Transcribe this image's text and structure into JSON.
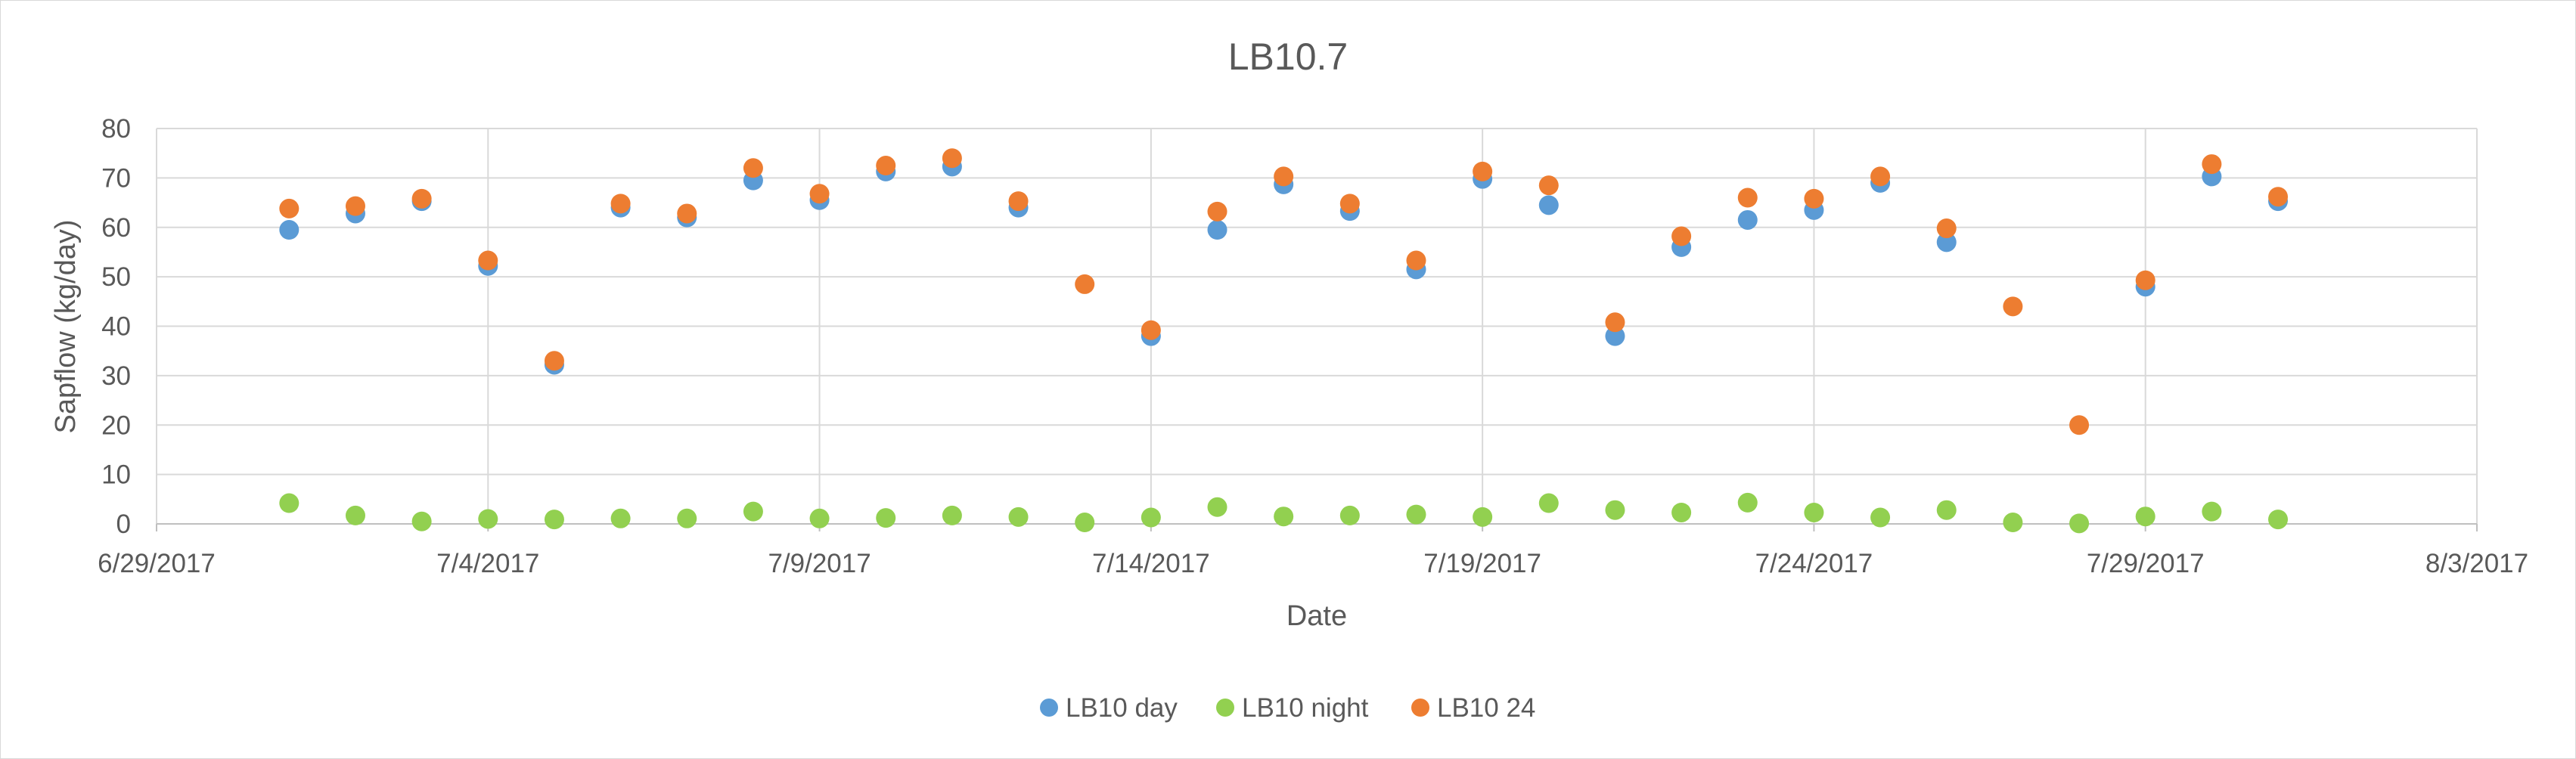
{
  "chart_data": {
    "type": "scatter",
    "title": "LB10.7",
    "xlabel": "Date",
    "ylabel": "Sapflow (kg/day)",
    "x_axis_type": "date",
    "xlim": [
      "2017-06-29",
      "2017-08-03"
    ],
    "ylim": [
      0,
      80
    ],
    "x_tick_labels": [
      "6/29/2017",
      "7/4/2017",
      "7/9/2017",
      "7/14/2017",
      "7/19/2017",
      "7/24/2017",
      "7/29/2017",
      "8/3/2017"
    ],
    "x_tick_dates": [
      "2017-06-29",
      "2017-07-04",
      "2017-07-09",
      "2017-07-14",
      "2017-07-19",
      "2017-07-24",
      "2017-07-29",
      "2017-08-03"
    ],
    "y_ticks": [
      0,
      10,
      20,
      30,
      40,
      50,
      60,
      70,
      80
    ],
    "grid": true,
    "legend_position": "bottom",
    "x": [
      "2017-07-01",
      "2017-07-02",
      "2017-07-03",
      "2017-07-04",
      "2017-07-05",
      "2017-07-06",
      "2017-07-07",
      "2017-07-08",
      "2017-07-09",
      "2017-07-10",
      "2017-07-11",
      "2017-07-12",
      "2017-07-13",
      "2017-07-14",
      "2017-07-15",
      "2017-07-16",
      "2017-07-17",
      "2017-07-18",
      "2017-07-19",
      "2017-07-20",
      "2017-07-21",
      "2017-07-22",
      "2017-07-23",
      "2017-07-24",
      "2017-07-25",
      "2017-07-26",
      "2017-07-27",
      "2017-07-28",
      "2017-07-29",
      "2017-07-30",
      "2017-07-31"
    ],
    "series": [
      {
        "name": "LB10 day",
        "color": "#5b9bd5",
        "values": [
          59.5,
          62.8,
          65.3,
          52.2,
          32.2,
          64.0,
          62.0,
          69.5,
          65.5,
          71.3,
          72.3,
          64.0,
          null,
          38.0,
          59.5,
          68.7,
          63.3,
          51.5,
          69.8,
          64.5,
          38.0,
          56.0,
          61.5,
          63.5,
          69.0,
          57.0,
          null,
          null,
          48.0,
          70.3,
          65.3
        ]
      },
      {
        "name": "LB10 night",
        "color": "#92d050",
        "values": [
          4.2,
          1.7,
          0.5,
          1.0,
          0.9,
          1.1,
          1.1,
          2.5,
          1.1,
          1.2,
          1.7,
          1.4,
          0.3,
          1.3,
          3.4,
          1.5,
          1.7,
          1.9,
          1.4,
          4.2,
          2.8,
          2.3,
          4.3,
          2.3,
          1.3,
          2.8,
          0.3,
          0.1,
          1.5,
          2.5,
          0.9
        ]
      },
      {
        "name": "LB10 24",
        "color": "#ed7d31",
        "values": [
          63.8,
          64.3,
          65.8,
          53.3,
          33.0,
          64.8,
          62.8,
          72.0,
          66.8,
          72.5,
          74.0,
          65.3,
          48.5,
          39.2,
          63.2,
          70.3,
          64.8,
          53.3,
          71.3,
          68.5,
          40.8,
          58.2,
          66.0,
          65.8,
          70.3,
          59.8,
          44.0,
          20.0,
          49.3,
          72.8,
          66.2
        ]
      }
    ]
  }
}
